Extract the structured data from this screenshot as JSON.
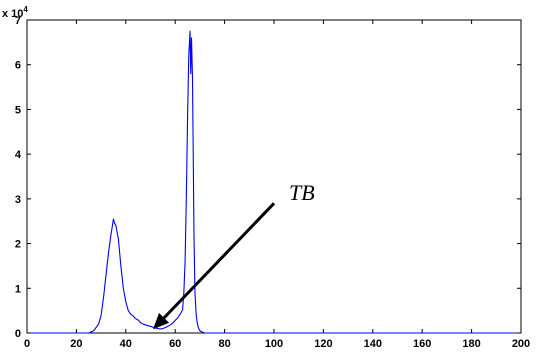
{
  "chart_data": {
    "type": "line",
    "title": "",
    "xlabel": "",
    "ylabel": "",
    "xlim": [
      0,
      200
    ],
    "ylim": [
      0,
      70000
    ],
    "y_exponent_label": "x 10",
    "y_exponent_power": "4",
    "x_ticks": [
      0,
      20,
      40,
      60,
      80,
      100,
      120,
      140,
      160,
      180,
      200
    ],
    "y_ticks": [
      0,
      10000,
      20000,
      30000,
      40000,
      50000,
      60000,
      70000
    ],
    "x_tick_labels": [
      "0",
      "20",
      "40",
      "60",
      "80",
      "100",
      "120",
      "140",
      "160",
      "180",
      "200"
    ],
    "y_tick_labels": [
      "0",
      "1",
      "2",
      "3",
      "4",
      "5",
      "6",
      "7"
    ],
    "grid": false,
    "line_color": "#0000ff",
    "series": [
      {
        "x": [
          0,
          20,
          25,
          27,
          29,
          30,
          31,
          32,
          33,
          34,
          35,
          35.5,
          36,
          37,
          38,
          39,
          40,
          41,
          42,
          43,
          44,
          45,
          46,
          47,
          48,
          49,
          50,
          51,
          52,
          53,
          54,
          55,
          56,
          57,
          58,
          59,
          60,
          61,
          62,
          63,
          63.5,
          64,
          64.5,
          65,
          65.5,
          66,
          66.3,
          66.6,
          67,
          67.3,
          67.6,
          68,
          68.5,
          69,
          69.5,
          70,
          71,
          72,
          73,
          80,
          100,
          120,
          140,
          160,
          180,
          200
        ],
        "y": [
          0,
          0,
          0,
          500,
          2000,
          4000,
          8000,
          13000,
          18000,
          22000,
          25500,
          24500,
          24000,
          21000,
          15000,
          10000,
          7000,
          5000,
          4200,
          3800,
          3200,
          2900,
          2300,
          2000,
          1800,
          1600,
          1500,
          1300,
          1100,
          1000,
          900,
          1000,
          1200,
          1500,
          1800,
          2200,
          2800,
          3400,
          4200,
          5200,
          9000,
          16000,
          30000,
          48000,
          62000,
          67500,
          58000,
          66000,
          57000,
          40000,
          22000,
          9000,
          4000,
          2000,
          1000,
          500,
          200,
          0,
          0,
          0,
          0,
          0,
          0,
          0,
          0,
          0
        ]
      }
    ],
    "annotation": {
      "text": "TB",
      "arrow_from": [
        100,
        29000
      ],
      "arrow_to": [
        51,
        800
      ],
      "color": "#000000"
    }
  }
}
